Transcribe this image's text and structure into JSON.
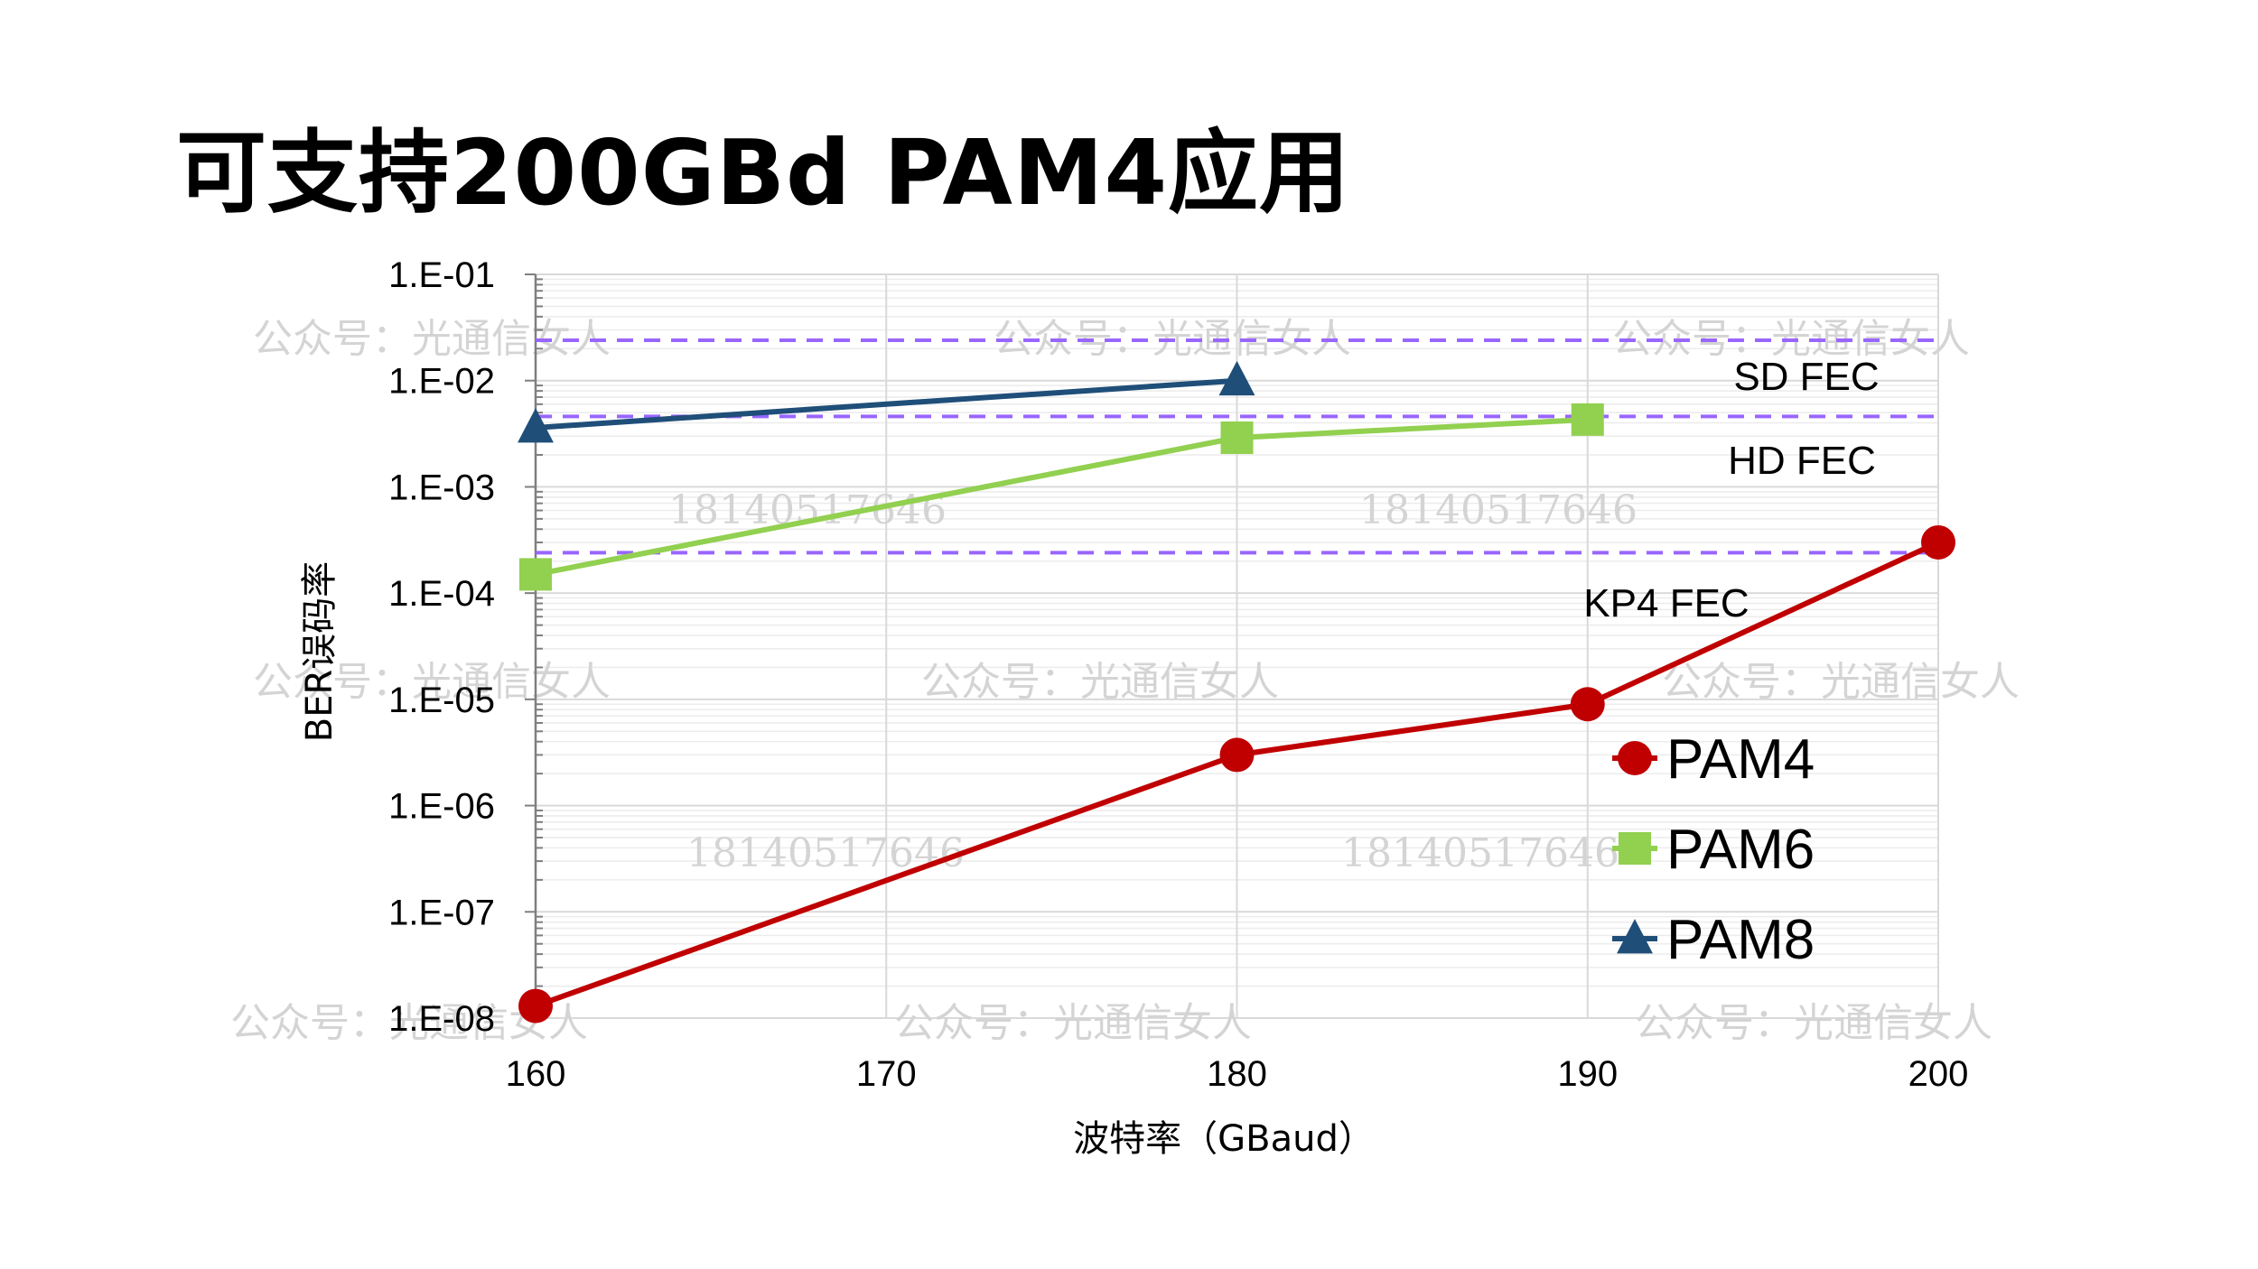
{
  "slide_title": "可支持200GBd PAM4应用",
  "chart_data": {
    "type": "line",
    "xlabel": "波特率（GBaud）",
    "ylabel": "BER误码率",
    "y_scale": "log",
    "x_ticks": [
      160,
      170,
      180,
      190,
      200
    ],
    "y_ticks": [
      0.1,
      0.01,
      0.001,
      0.0001,
      1e-05,
      1e-06,
      1e-07,
      1e-08
    ],
    "y_tick_labels": [
      "1.E-01",
      "1.E-02",
      "1.E-03",
      "1.E-04",
      "1.E-05",
      "1.E-06",
      "1.E-07",
      "1.E-08"
    ],
    "xlim": [
      160,
      200
    ],
    "ylim": [
      1e-08,
      0.1
    ],
    "grid": true,
    "legend_position": "bottom-right",
    "series": [
      {
        "name": "PAM4",
        "color": "#c00000",
        "marker": "circle",
        "x": [
          160,
          180,
          190,
          200
        ],
        "y": [
          1.3e-08,
          3e-06,
          9e-06,
          0.0003
        ]
      },
      {
        "name": "PAM6",
        "color": "#92d050",
        "marker": "square",
        "x": [
          160,
          180,
          190
        ],
        "y": [
          0.00015,
          0.0029,
          0.0043
        ]
      },
      {
        "name": "PAM8",
        "color": "#1f4e79",
        "marker": "triangle",
        "x": [
          160,
          180
        ],
        "y": [
          0.0036,
          0.01
        ]
      }
    ],
    "thresholds": [
      {
        "label": "SD FEC",
        "y": 0.024
      },
      {
        "label": "HD FEC",
        "y": 0.0046
      },
      {
        "label": "KP4 FEC",
        "y": 0.00024
      }
    ],
    "threshold_color": "#9966ff"
  },
  "watermarks": {
    "account": "公众号：光通信女人",
    "phone": "18140517646"
  }
}
